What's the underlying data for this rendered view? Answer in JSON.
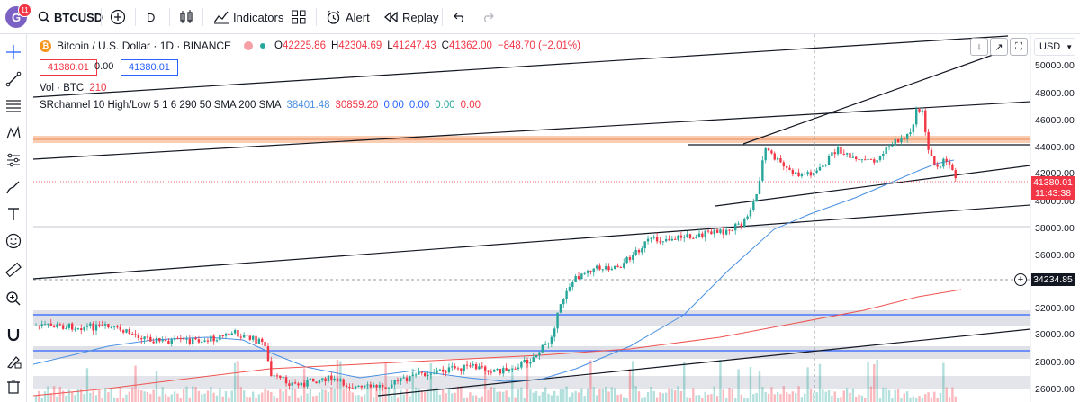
{
  "header": {
    "avatar_letter": "G",
    "notifications": "11",
    "symbol": "BTCUSD",
    "interval": "D",
    "indicators_label": "Indicators",
    "alert_label": "Alert",
    "replay_label": "Replay"
  },
  "legend": {
    "title": "Bitcoin / U.S. Dollar · 1D · BINANCE",
    "open_label": "O",
    "open": "42225.86",
    "high_label": "H",
    "high": "42304.69",
    "low_label": "L",
    "low": "41247.43",
    "close_label": "C",
    "close": "41362.00",
    "change": "−848.70 (−2.01%)",
    "sell_price": "41380.01",
    "spread": "0.00",
    "buy_price": "41380.01",
    "vol_label": "Vol · BTC",
    "vol_value": "210",
    "srchannel_label": "SRchannel 10 High/Low 5 1 6 290 50 SMA 200 SMA",
    "sr_v1": "38401.48",
    "sr_v2": "30859.20",
    "sr_v3": "0.00",
    "sr_v4": "0.00",
    "sr_v5": "0.00",
    "sr_v6": "0.00"
  },
  "price_axis": {
    "currency": "USD",
    "labels": [
      "50000.00",
      "48000.00",
      "46000.00",
      "44000.00",
      "42000.00",
      "40000.00",
      "38000.00",
      "36000.00",
      "32000.00",
      "30000.00",
      "28000.00",
      "26000.00"
    ],
    "current_price": "41380.01",
    "countdown": "11:43:38",
    "crosshair_price": "34234.85"
  },
  "colors": {
    "up": "#26a69a",
    "down": "#f23645",
    "sma50": "#4a90e2",
    "sma200": "#ef5350",
    "zone_orange": "#f5b690",
    "zone_gray": "#d1d4dc",
    "zone_line": "#2962ff"
  },
  "toolbar_icons": [
    "crosshair-icon",
    "trend-line-icon",
    "fib-icon",
    "pattern-icon",
    "forecast-icon",
    "brush-icon",
    "text-icon",
    "emoji-icon",
    "ruler-icon",
    "zoom-icon",
    "magnet-icon",
    "lock-draw-icon",
    "trash-icon"
  ]
}
